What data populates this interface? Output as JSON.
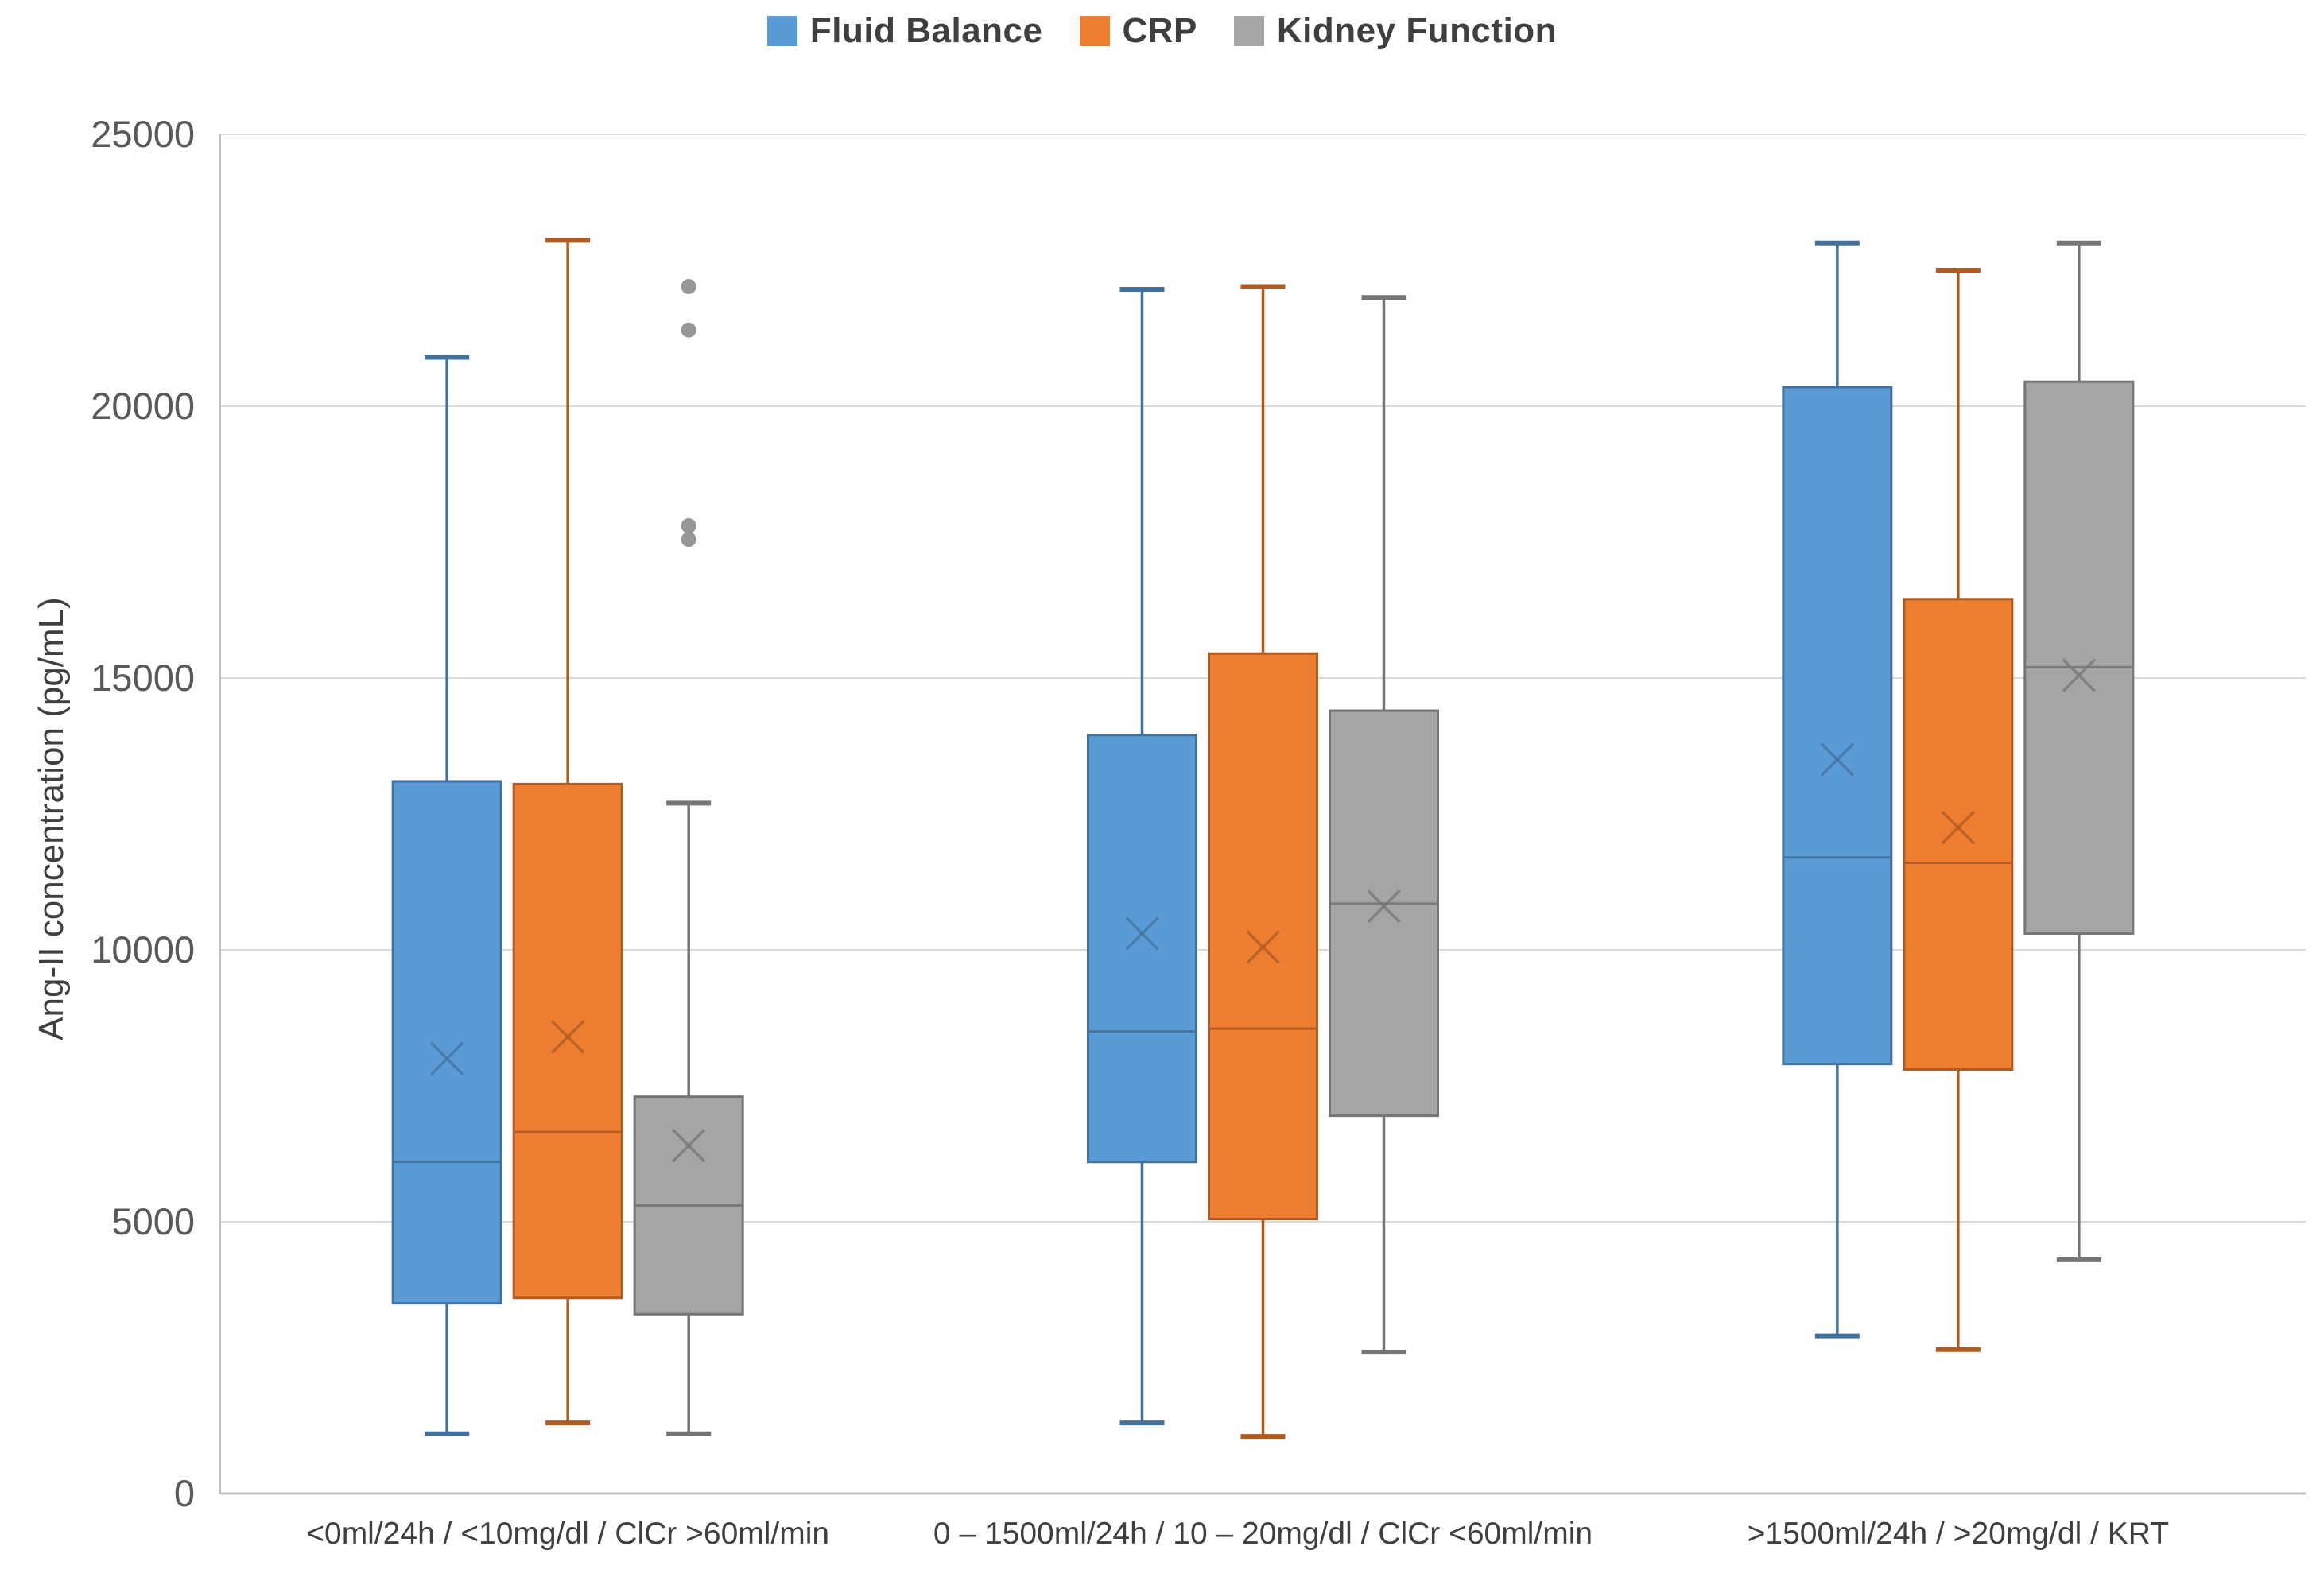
{
  "chart_data": {
    "type": "box",
    "title": "",
    "xlabel": "",
    "ylabel": "Ang-II concentration (pg/mL)",
    "ylim": [
      0,
      25000
    ],
    "yticks": [
      0,
      5000,
      10000,
      15000,
      20000,
      25000
    ],
    "grid": "horizontal",
    "legend_position": "top-center",
    "categories": [
      "<0ml/24h / <10mg/dl / ClCr >60ml/min",
      "0 – 1500ml/24h / 10 – 20mg/dl / ClCr <60ml/min",
      ">1500ml/24h / >20mg/dl / KRT"
    ],
    "series": [
      {
        "name": "Fluid Balance",
        "color": "#5B9BD5",
        "edge_color": "#41719C",
        "boxes": [
          {
            "min": 1100,
            "q1": 3500,
            "median": 6100,
            "q3": 13100,
            "max": 20900,
            "mean": 8000,
            "outliers": []
          },
          {
            "min": 1300,
            "q1": 6100,
            "median": 8500,
            "q3": 13950,
            "max": 22150,
            "mean": 10300,
            "outliers": []
          },
          {
            "min": 2900,
            "q1": 7900,
            "median": 11700,
            "q3": 20350,
            "max": 23000,
            "mean": 13500,
            "outliers": []
          }
        ]
      },
      {
        "name": "CRP",
        "color": "#ED7D31",
        "edge_color": "#AE5A21",
        "boxes": [
          {
            "min": 1300,
            "q1": 3600,
            "median": 6650,
            "q3": 13050,
            "max": 23050,
            "mean": 8400,
            "outliers": []
          },
          {
            "min": 1050,
            "q1": 5050,
            "median": 8550,
            "q3": 15450,
            "max": 22200,
            "mean": 10050,
            "outliers": []
          },
          {
            "min": 2650,
            "q1": 7800,
            "median": 11600,
            "q3": 16450,
            "max": 22500,
            "mean": 12250,
            "outliers": []
          }
        ]
      },
      {
        "name": "Kidney Function",
        "color": "#A5A5A5",
        "edge_color": "#757575",
        "boxes": [
          {
            "min": 1100,
            "q1": 3300,
            "median": 5300,
            "q3": 7300,
            "max": 12700,
            "mean": 6400,
            "outliers": [
              17550,
              17800,
              21400,
              22200
            ]
          },
          {
            "min": 2600,
            "q1": 6950,
            "median": 10850,
            "q3": 14400,
            "max": 22000,
            "mean": 10800,
            "outliers": []
          },
          {
            "min": 4300,
            "q1": 10300,
            "median": 15200,
            "q3": 20450,
            "max": 23000,
            "mean": 15050,
            "outliers": []
          }
        ]
      }
    ]
  },
  "style": {
    "gridline_color": "#D9D9D9",
    "axis_line_color": "#BFBFBF",
    "tick_label_color": "#595959",
    "category_label_color": "#3f3f3f",
    "outlier_color": "#8C8C8C",
    "background": "#FFFFFF"
  }
}
